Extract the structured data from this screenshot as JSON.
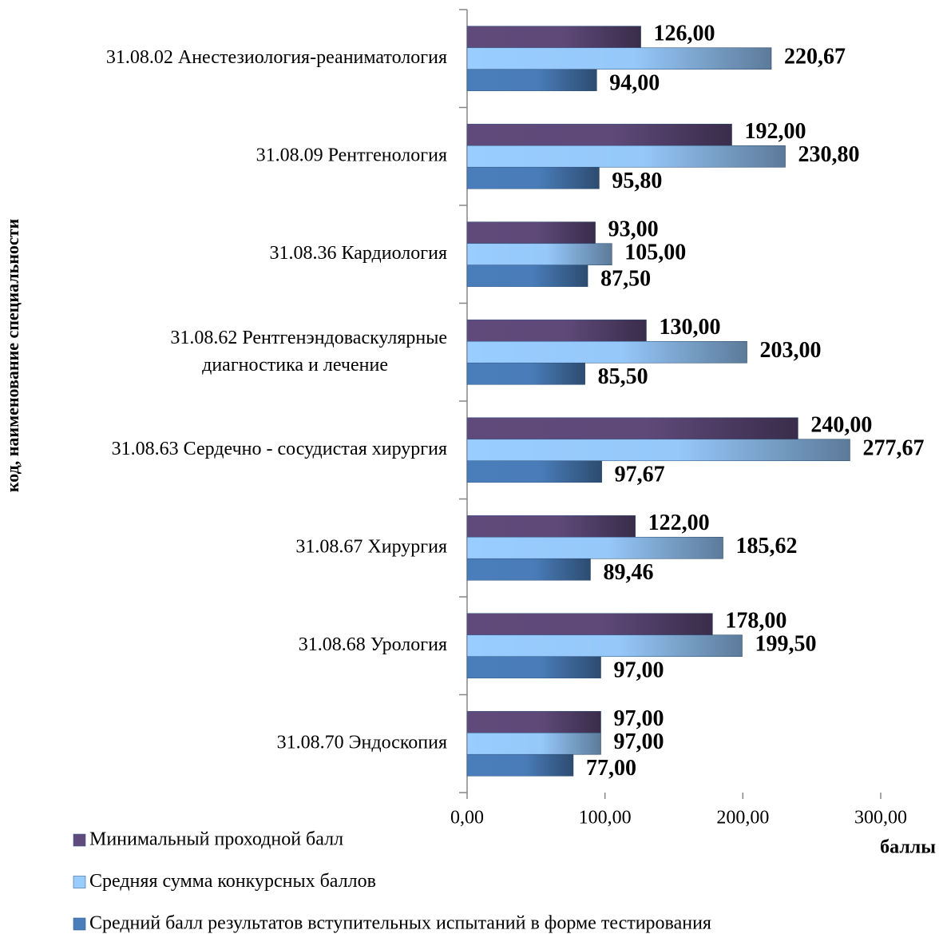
{
  "chart_data": {
    "type": "hbar",
    "y_label": "код, наименование специальности",
    "x_label": "баллы",
    "categories": [
      "31.08.02 Анестезиология-реаниматология",
      "31.08.09 Рентгенология",
      "31.08.36 Кардиология",
      "31.08.62  Рентгенэндоваскулярные\nдиагностика и лечение",
      "31.08.63 Сердечно - сосудистая хирургия",
      "31.08.67  Хирургия",
      "31.08.68  Урология",
      "31.08.70 Эндоскопия"
    ],
    "series": [
      {
        "name": "Минимальный проходной балл",
        "color": "#604a7b",
        "values": [
          126,
          192,
          93,
          130,
          240,
          122,
          178,
          97
        ],
        "value_labels": [
          "126,00",
          "192,00",
          "93,00",
          "130,00",
          "240,00",
          "122,00",
          "178,00",
          "97,00"
        ]
      },
      {
        "name": "Средняя сумма конкурсных баллов",
        "color": "#99ccff",
        "values": [
          220.67,
          230.8,
          105,
          203,
          277.67,
          185.62,
          199.5,
          97
        ],
        "value_labels": [
          "220,67",
          "230,80",
          "105,00",
          "203,00",
          "277,67",
          "185,62",
          "199,50",
          "97,00"
        ]
      },
      {
        "name": "Средний балл результатов вступительных испытаний в форме тестирования",
        "color": "#4a7ebb",
        "values": [
          94,
          95.8,
          87.5,
          85.5,
          97.67,
          89.46,
          97,
          77
        ],
        "value_labels": [
          "94,00",
          "95,80",
          "87,50",
          "85,50",
          "97,67",
          "89,46",
          "97,00",
          "77,00"
        ]
      }
    ],
    "xlim": [
      0,
      300
    ],
    "xticks": [
      {
        "value": 0,
        "label": "0,00"
      },
      {
        "value": 100,
        "label": "100,00"
      },
      {
        "value": 200,
        "label": "200,00"
      },
      {
        "value": 300,
        "label": "300,00"
      }
    ],
    "legend": "bottom-left"
  }
}
